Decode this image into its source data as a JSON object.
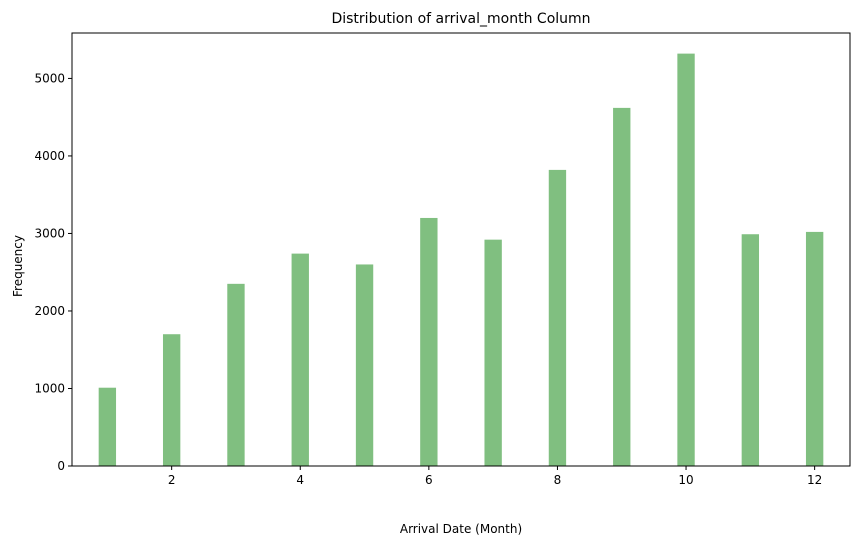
{
  "chart_data": {
    "type": "bar",
    "subtype": "histogram",
    "title": "Distribution of arrival_month Column",
    "xlabel": "Arrival Date (Month)",
    "ylabel": "Frequency",
    "x": [
      1,
      2,
      3,
      4,
      5,
      6,
      7,
      8,
      9,
      10,
      11,
      12
    ],
    "values": [
      1010,
      1700,
      2350,
      2740,
      2600,
      3200,
      2920,
      3820,
      4620,
      5320,
      2990,
      3020
    ],
    "xlim": [
      0.45,
      12.55
    ],
    "ylim": [
      0,
      5586
    ],
    "xticks": [
      2,
      4,
      6,
      8,
      10,
      12
    ],
    "yticks": [
      0,
      1000,
      2000,
      3000,
      4000,
      5000
    ],
    "bar_color": "#80bf80",
    "grid": false,
    "legend": "none"
  }
}
